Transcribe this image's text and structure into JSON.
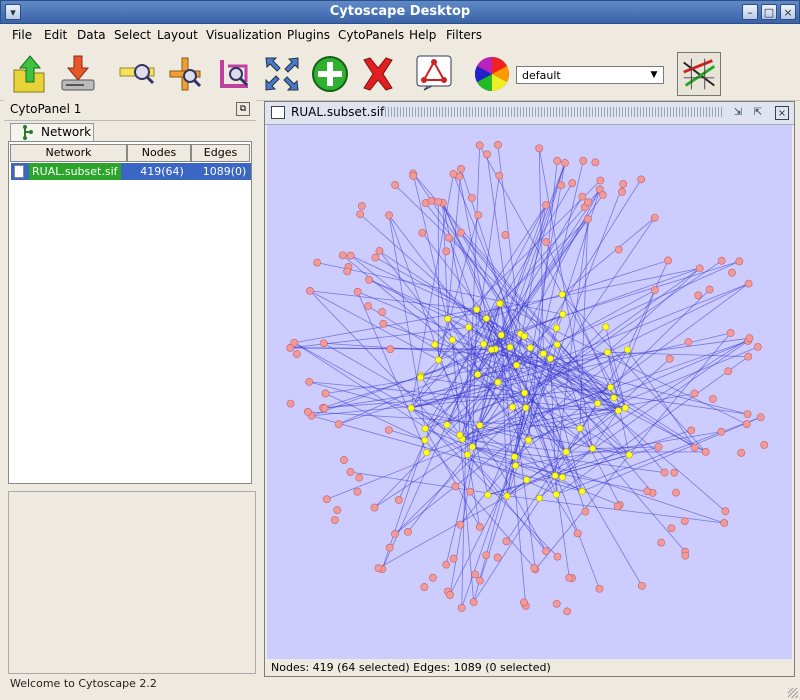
{
  "window": {
    "title": "Cytoscape Desktop"
  },
  "menu": [
    "File",
    "Edit",
    "Data",
    "Select",
    "Layout",
    "Visualization",
    "Plugins",
    "CytoPanels",
    "Help",
    "Filters"
  ],
  "toolbar": {
    "visual_style": "default"
  },
  "cytopanel": {
    "title": "CytoPanel 1",
    "tab_label": "Network",
    "columns": [
      "Network",
      "Nodes",
      "Edges"
    ],
    "rows": [
      {
        "name": "RUAL.subset.sif",
        "nodes": "419(64)",
        "edges": "1089(0)"
      }
    ]
  },
  "network_window": {
    "title": "RUAL.subset.sif",
    "status": "Nodes: 419 (64 selected) Edges: 1089 (0 selected)"
  },
  "graph": {
    "node_count": 419,
    "selected_count": 64,
    "edge_count": 1089,
    "node_color": "#f29a9a",
    "selected_color": "#ffff22",
    "edge_color": "#3333cc",
    "background": "#ccccff"
  },
  "status": "Welcome to Cytoscape 2.2"
}
